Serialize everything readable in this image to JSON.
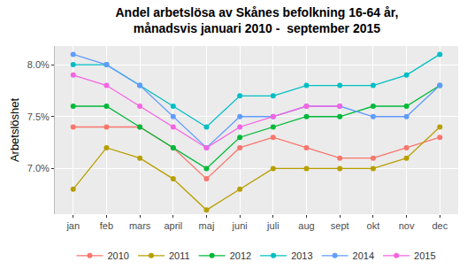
{
  "chart_data": {
    "type": "line",
    "title": "Andel arbetslösa av Skånes befolkning 16-64 år,\nmånadsvis januari 2010 -  september 2015",
    "y_label": "Arbetslöshet",
    "categories": [
      "jan",
      "feb",
      "mars",
      "april",
      "maj",
      "juni",
      "juli",
      "aug",
      "sept",
      "okt",
      "nov",
      "dec"
    ],
    "series": [
      {
        "name": "2010",
        "color": "#F8766D",
        "values": [
          7.4,
          7.4,
          7.4,
          7.2,
          6.9,
          7.2,
          7.3,
          7.2,
          7.1,
          7.1,
          7.2,
          7.3
        ]
      },
      {
        "name": "2011",
        "color": "#B79F00",
        "values": [
          6.8,
          7.2,
          7.1,
          6.9,
          6.6,
          6.8,
          7.0,
          7.0,
          7.0,
          7.0,
          7.1,
          7.4
        ]
      },
      {
        "name": "2012",
        "color": "#00BA38",
        "values": [
          7.6,
          7.6,
          7.4,
          7.2,
          7.0,
          7.3,
          7.4,
          7.5,
          7.5,
          7.6,
          7.6,
          7.8
        ]
      },
      {
        "name": "2013",
        "color": "#00BFC4",
        "values": [
          8.0,
          8.0,
          7.8,
          7.6,
          7.4,
          7.7,
          7.7,
          7.8,
          7.8,
          7.8,
          7.9,
          8.1
        ]
      },
      {
        "name": "2014",
        "color": "#619CFF",
        "values": [
          8.1,
          8.0,
          7.8,
          7.5,
          7.2,
          7.5,
          7.5,
          7.6,
          7.6,
          7.5,
          7.5,
          7.8
        ]
      },
      {
        "name": "2015",
        "color": "#F564E3",
        "values": [
          7.9,
          7.8,
          7.6,
          7.4,
          7.2,
          7.4,
          7.5,
          7.6,
          7.6,
          null,
          null,
          null
        ]
      }
    ],
    "ylim": [
      6.56,
      8.18
    ],
    "yticks": [
      {
        "value": 7.0,
        "label": "7.0%"
      },
      {
        "value": 7.5,
        "label": "7.5%"
      },
      {
        "value": 8.0,
        "label": "8.0%"
      }
    ],
    "grid": true,
    "legend": "bottom",
    "marker": "circle",
    "line_style": "solid"
  }
}
